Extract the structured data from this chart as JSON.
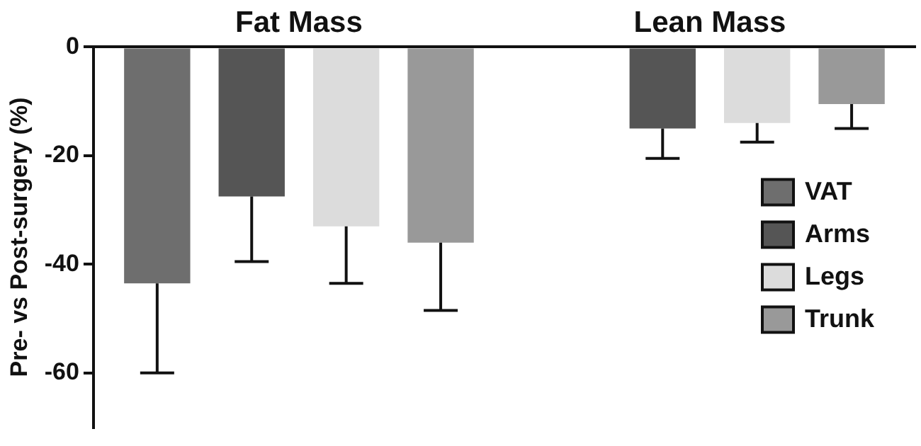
{
  "chart_data": {
    "type": "bar",
    "ylabel": "Pre- vs Post-surgery (%)",
    "categories": [
      "Fat Mass",
      "Lean Mass"
    ],
    "series": [
      {
        "name": "VAT",
        "color": "#6e6e6e",
        "values": [
          -43.5,
          null
        ],
        "errors": [
          [
            -60,
            -43.5
          ],
          null
        ]
      },
      {
        "name": "Arms",
        "color": "#555555",
        "values": [
          -27.5,
          -15
        ],
        "errors": [
          [
            -39.5,
            -27.5
          ],
          [
            -20.5,
            -15
          ]
        ]
      },
      {
        "name": "Legs",
        "color": "#dcdcdc",
        "values": [
          -33,
          -14
        ],
        "errors": [
          [
            -43.5,
            -33
          ],
          [
            -17.5,
            -14
          ]
        ]
      },
      {
        "name": "Trunk",
        "color": "#999999",
        "values": [
          -36,
          -10.5
        ],
        "errors": [
          [
            -48.5,
            -36
          ],
          [
            -15,
            -10.5
          ]
        ]
      }
    ],
    "ylim": [
      -70,
      0
    ],
    "yticks": [
      0,
      -20,
      -40,
      -60
    ],
    "grid": false,
    "legend": "bottom right"
  }
}
